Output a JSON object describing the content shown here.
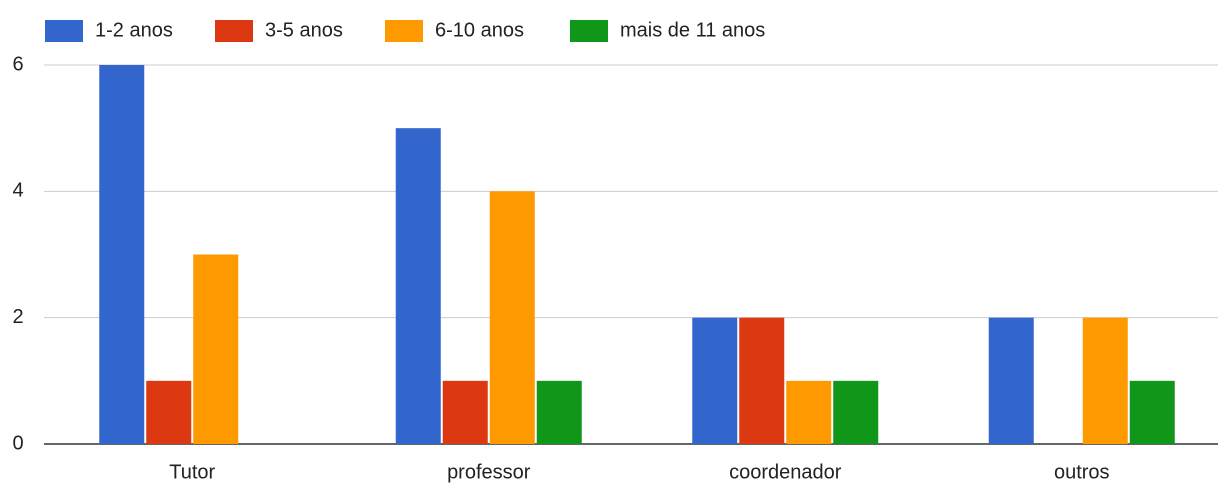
{
  "chart_data": {
    "type": "bar",
    "categories": [
      "Tutor",
      "professor",
      "coordenador",
      "outros"
    ],
    "series": [
      {
        "name": "1-2 anos",
        "color": "#3366cc",
        "values": [
          6,
          5,
          2,
          2
        ]
      },
      {
        "name": "3-5 anos",
        "color": "#dc3912",
        "values": [
          1,
          1,
          2,
          0
        ]
      },
      {
        "name": "6-10 anos",
        "color": "#ff9900",
        "values": [
          3,
          4,
          1,
          2
        ]
      },
      {
        "name": "mais de 11 anos",
        "color": "#109618",
        "values": [
          0,
          1,
          1,
          1
        ]
      }
    ],
    "ylim": [
      0,
      6
    ],
    "yticks": [
      0,
      2,
      4,
      6
    ],
    "grid": true,
    "legend": "top"
  }
}
